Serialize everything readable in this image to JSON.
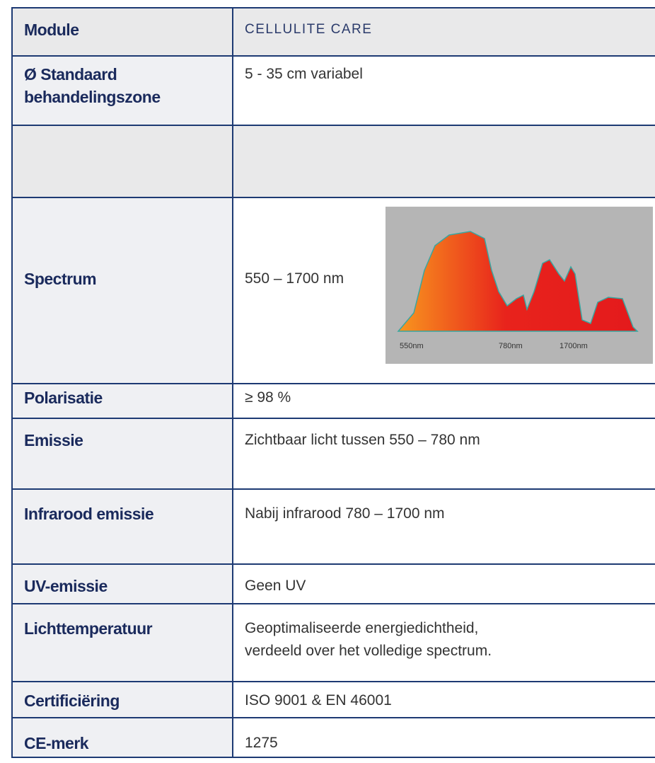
{
  "table": {
    "rows": [
      {
        "label": "Module",
        "value": "CELLULITE CARE"
      },
      {
        "label_lines": [
          "Ø Standaard",
          "behandelingszone"
        ],
        "value": "5 - 35 cm variabel"
      },
      {
        "label": "Spectrum",
        "value": "550 – 1700 nm",
        "spectrum_labels": [
          "550nm",
          "780nm",
          "1700nm"
        ]
      },
      {
        "label": "Polarisatie",
        "value": "≥ 98 %"
      },
      {
        "label": "Emissie",
        "value": "Zichtbaar licht tussen 550 – 780 nm"
      },
      {
        "label": "Infrarood emissie",
        "value": "Nabij infrarood 780 – 1700 nm"
      },
      {
        "label": "UV-emissie",
        "value": "Geen UV"
      },
      {
        "label": "Lichttemperatuur",
        "value_lines": [
          "Geoptimaliseerde energiedichtheid,",
          "verdeeld over het volledige spectrum."
        ]
      },
      {
        "label": "Certificiëring",
        "value": "ISO 9001 & EN 46001"
      },
      {
        "label": "CE-merk",
        "value": "1275"
      }
    ]
  }
}
